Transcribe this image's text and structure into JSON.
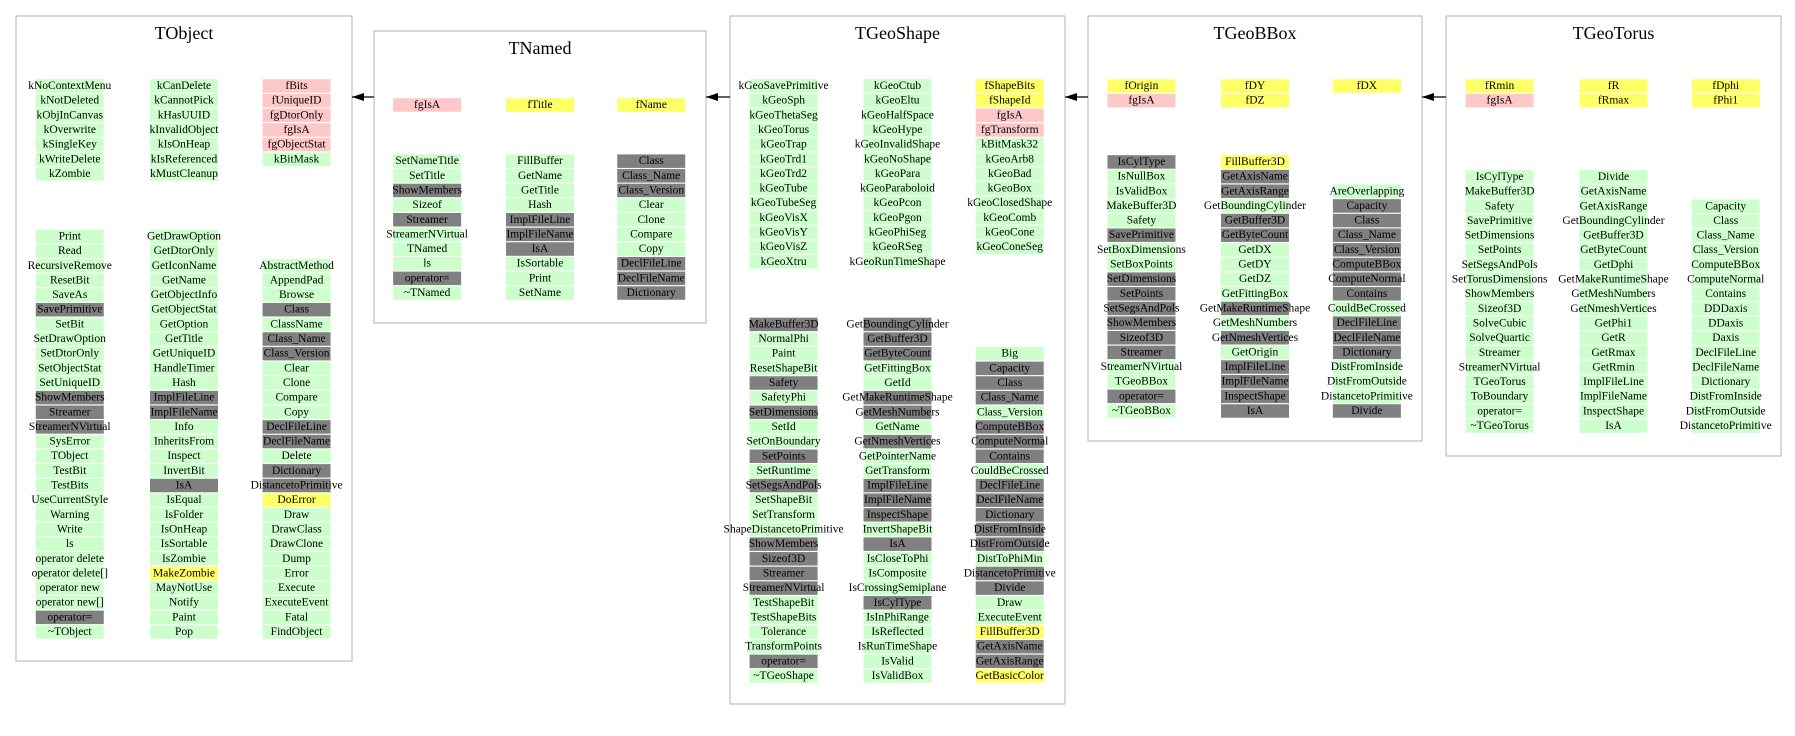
{
  "boxes": [
    {
      "title": "TObject",
      "members": [
        [
          "kNoContextMenu",
          "kNotDeleted",
          "kObjInCanvas",
          "kOverwrite",
          "kSingleKey",
          "kWriteDelete",
          "kZombie"
        ],
        [
          "kCanDelete",
          "kCannotPick",
          "kHasUUID",
          "kInvalidObject",
          "kIsOnHeap",
          "kIsReferenced",
          "kMustCleanup"
        ],
        [
          {
            "label": "fBits",
            "color": "#ffc8c8"
          },
          {
            "label": "fUniqueID",
            "color": "#ffc8c8"
          },
          {
            "label": "fgDtorOnly",
            "color": "#ffc8c8"
          },
          {
            "label": "fgIsA",
            "color": "#ffc8c8"
          },
          {
            "label": "fgObjectStat",
            "color": "#ffc8c8"
          },
          "kBitMask"
        ]
      ],
      "methods": [
        [
          "Print",
          "Read",
          "RecursiveRemove",
          "ResetBit",
          "SaveAs",
          {
            "label": "SavePrimitive",
            "color": "#808080"
          },
          "SetBit",
          "SetDrawOption",
          "SetDtorOnly",
          "SetObjectStat",
          "SetUniqueID",
          {
            "label": "ShowMembers",
            "color": "#808080"
          },
          {
            "label": "Streamer",
            "color": "#808080"
          },
          {
            "label": "StreamerNVirtual",
            "color": "#808080"
          },
          "SysError",
          "TObject",
          "TestBit",
          "TestBits",
          "UseCurrentStyle",
          "Warning",
          "Write",
          "ls",
          "operator delete",
          "operator delete[]",
          "operator new",
          "operator new[]",
          {
            "label": "operator=",
            "color": "#808080"
          },
          "~TObject"
        ],
        [
          "GetDrawOption",
          "GetDtorOnly",
          "GetIconName",
          "GetName",
          "GetObjectInfo",
          "GetObjectStat",
          "GetOption",
          "GetTitle",
          "GetUniqueID",
          "HandleTimer",
          "Hash",
          {
            "label": "ImplFileLine",
            "color": "#808080"
          },
          {
            "label": "ImplFileName",
            "color": "#808080"
          },
          "Info",
          "InheritsFrom",
          "Inspect",
          "InvertBit",
          {
            "label": "IsA",
            "color": "#808080"
          },
          "IsEqual",
          "IsFolder",
          "IsOnHeap",
          "IsSortable",
          "IsZombie",
          {
            "label": "MakeZombie",
            "color": "#ffff66"
          },
          "MayNotUse",
          "Notify",
          "Paint",
          "Pop"
        ],
        [
          "AbstractMethod",
          "AppendPad",
          "Browse",
          {
            "label": "Class",
            "color": "#808080"
          },
          "ClassName",
          {
            "label": "Class_Name",
            "color": "#808080"
          },
          {
            "label": "Class_Version",
            "color": "#808080"
          },
          "Clear",
          "Clone",
          "Compare",
          "Copy",
          {
            "label": "DeclFileLine",
            "color": "#808080"
          },
          {
            "label": "DeclFileName",
            "color": "#808080"
          },
          "Delete",
          {
            "label": "Dictionary",
            "color": "#808080"
          },
          {
            "label": "DistancetoPrimitive",
            "color": "#808080"
          },
          {
            "label": "DoError",
            "color": "#ffff66"
          },
          "Draw",
          "DrawClass",
          "DrawClone",
          "Dump",
          "Error",
          "Execute",
          "ExecuteEvent",
          "Fatal",
          "FindObject"
        ]
      ]
    },
    {
      "title": "TNamed",
      "members": [
        [
          {
            "label": "fgIsA",
            "color": "#ffc8c8"
          }
        ],
        [
          {
            "label": "fTitle",
            "color": "#ffff66"
          }
        ],
        [
          {
            "label": "fName",
            "color": "#ffff66"
          }
        ]
      ],
      "methods": [
        [
          "SetNameTitle",
          "SetTitle",
          {
            "label": "ShowMembers",
            "color": "#808080"
          },
          "Sizeof",
          {
            "label": "Streamer",
            "color": "#808080"
          },
          "StreamerNVirtual",
          "TNamed",
          "ls",
          {
            "label": "operator=",
            "color": "#808080"
          },
          "~TNamed"
        ],
        [
          "FillBuffer",
          "GetName",
          "GetTitle",
          "Hash",
          {
            "label": "ImplFileLine",
            "color": "#808080"
          },
          {
            "label": "ImplFileName",
            "color": "#808080"
          },
          {
            "label": "IsA",
            "color": "#808080"
          },
          "IsSortable",
          "Print",
          "SetName"
        ],
        [
          {
            "label": "Class",
            "color": "#808080"
          },
          {
            "label": "Class_Name",
            "color": "#808080"
          },
          {
            "label": "Class_Version",
            "color": "#808080"
          },
          "Clear",
          "Clone",
          "Compare",
          "Copy",
          {
            "label": "DeclFileLine",
            "color": "#808080"
          },
          {
            "label": "DeclFileName",
            "color": "#808080"
          },
          {
            "label": "Dictionary",
            "color": "#808080"
          }
        ]
      ]
    },
    {
      "title": "TGeoShape",
      "members": [
        [
          "kGeoSavePrimitive",
          "kGeoSph",
          "kGeoThetaSeg",
          "kGeoTorus",
          "kGeoTrap",
          "kGeoTrd1",
          "kGeoTrd2",
          "kGeoTube",
          "kGeoTubeSeg",
          "kGeoVisX",
          "kGeoVisY",
          "kGeoVisZ",
          "kGeoXtru"
        ],
        [
          "kGeoCtub",
          "kGeoEltu",
          "kGeoHalfSpace",
          "kGeoHype",
          "kGeoInvalidShape",
          "kGeoNoShape",
          "kGeoPara",
          "kGeoParaboloid",
          "kGeoPcon",
          "kGeoPgon",
          "kGeoPhiSeg",
          "kGeoRSeg",
          "kGeoRunTimeShape"
        ],
        [
          {
            "label": "fShapeBits",
            "color": "#ffff66"
          },
          {
            "label": "fShapeId",
            "color": "#ffff66"
          },
          {
            "label": "fgIsA",
            "color": "#ffc8c8"
          },
          {
            "label": "fgTransform",
            "color": "#ffc8c8"
          },
          "kBitMask32",
          "kGeoArb8",
          "kGeoBad",
          "kGeoBox",
          "kGeoClosedShape",
          "kGeoComb",
          "kGeoCone",
          "kGeoConeSeg"
        ]
      ],
      "methods": [
        [
          {
            "label": "MakeBuffer3D",
            "color": "#808080"
          },
          "NormalPhi",
          "Paint",
          "ResetShapeBit",
          {
            "label": "Safety",
            "color": "#808080"
          },
          "SafetyPhi",
          {
            "label": "SetDimensions",
            "color": "#808080"
          },
          "SetId",
          "SetOnBoundary",
          {
            "label": "SetPoints",
            "color": "#808080"
          },
          "SetRuntime",
          {
            "label": "SetSegsAndPols",
            "color": "#808080"
          },
          "SetShapeBit",
          "SetTransform",
          "ShapeDistancetoPrimitive",
          {
            "label": "ShowMembers",
            "color": "#808080"
          },
          {
            "label": "Sizeof3D",
            "color": "#808080"
          },
          {
            "label": "Streamer",
            "color": "#808080"
          },
          {
            "label": "StreamerNVirtual",
            "color": "#808080"
          },
          "TestShapeBit",
          "TestShapeBits",
          "Tolerance",
          "TransformPoints",
          {
            "label": "operator=",
            "color": "#808080"
          },
          "~TGeoShape"
        ],
        [
          {
            "label": "GetBoundingCylinder",
            "color": "#808080"
          },
          {
            "label": "GetBuffer3D",
            "color": "#808080"
          },
          {
            "label": "GetByteCount",
            "color": "#808080"
          },
          "GetFittingBox",
          "GetId",
          {
            "label": "GetMakeRuntimeShape",
            "color": "#808080"
          },
          {
            "label": "GetMeshNumbers",
            "color": "#808080"
          },
          "GetName",
          {
            "label": "GetNmeshVertices",
            "color": "#808080"
          },
          "GetPointerName",
          "GetTransform",
          {
            "label": "ImplFileLine",
            "color": "#808080"
          },
          {
            "label": "ImplFileName",
            "color": "#808080"
          },
          {
            "label": "InspectShape",
            "color": "#808080"
          },
          "InvertShapeBit",
          {
            "label": "IsA",
            "color": "#808080"
          },
          "IsCloseToPhi",
          "IsComposite",
          "IsCrossingSemiplane",
          {
            "label": "IsCylType",
            "color": "#808080"
          },
          "IsInPhiRange",
          "IsReflected",
          "IsRunTimeShape",
          "IsValid",
          "IsValidBox"
        ],
        [
          "Big",
          {
            "label": "Capacity",
            "color": "#808080"
          },
          {
            "label": "Class",
            "color": "#808080"
          },
          {
            "label": "Class_Name",
            "color": "#808080"
          },
          "Class_Version",
          {
            "label": "ComputeBBox",
            "color": "#808080"
          },
          {
            "label": "ComputeNormal",
            "color": "#808080"
          },
          {
            "label": "Contains",
            "color": "#808080"
          },
          "CouldBeCrossed",
          {
            "label": "DeclFileLine",
            "color": "#808080"
          },
          {
            "label": "DeclFileName",
            "color": "#808080"
          },
          {
            "label": "Dictionary",
            "color": "#808080"
          },
          {
            "label": "DistFromInside",
            "color": "#808080"
          },
          {
            "label": "DistFromOutside",
            "color": "#808080"
          },
          "DistToPhiMin",
          {
            "label": "DistancetoPrimitive",
            "color": "#808080"
          },
          {
            "label": "Divide",
            "color": "#808080"
          },
          "Draw",
          "ExecuteEvent",
          {
            "label": "FillBuffer3D",
            "color": "#ffff66"
          },
          {
            "label": "GetAxisName",
            "color": "#808080"
          },
          {
            "label": "GetAxisRange",
            "color": "#808080"
          },
          {
            "label": "GetBasicColor",
            "color": "#ffff66"
          }
        ]
      ]
    },
    {
      "title": "TGeoBBox",
      "members": [
        [
          {
            "label": "fOrigin",
            "color": "#ffff66"
          },
          {
            "label": "fgIsA",
            "color": "#ffc8c8"
          }
        ],
        [
          {
            "label": "fDY",
            "color": "#ffff66"
          },
          {
            "label": "fDZ",
            "color": "#ffff66"
          }
        ],
        [
          {
            "label": "fDX",
            "color": "#ffff66"
          }
        ]
      ],
      "methods": [
        [
          {
            "label": "IsCylType",
            "color": "#808080"
          },
          "IsNullBox",
          "IsValidBox",
          "MakeBuffer3D",
          "Safety",
          {
            "label": "SavePrimitive",
            "color": "#808080"
          },
          "SetBoxDimensions",
          "SetBoxPoints",
          {
            "label": "SetDimensions",
            "color": "#808080"
          },
          {
            "label": "SetPoints",
            "color": "#808080"
          },
          {
            "label": "SetSegsAndPols",
            "color": "#808080"
          },
          {
            "label": "ShowMembers",
            "color": "#808080"
          },
          {
            "label": "Sizeof3D",
            "color": "#808080"
          },
          {
            "label": "Streamer",
            "color": "#808080"
          },
          "StreamerNVirtual",
          "TGeoBBox",
          {
            "label": "operator=",
            "color": "#808080"
          },
          "~TGeoBBox"
        ],
        [
          {
            "label": "FillBuffer3D",
            "color": "#ffff66"
          },
          {
            "label": "GetAxisName",
            "color": "#808080"
          },
          {
            "label": "GetAxisRange",
            "color": "#808080"
          },
          "GetBoundingCylinder",
          {
            "label": "GetBuffer3D",
            "color": "#808080"
          },
          {
            "label": "GetByteCount",
            "color": "#808080"
          },
          "GetDX",
          "GetDY",
          "GetDZ",
          "GetFittingBox",
          {
            "label": "GetMakeRuntimeShape",
            "color": "#808080"
          },
          "GetMeshNumbers",
          {
            "label": "GetNmeshVertices",
            "color": "#808080"
          },
          "GetOrigin",
          {
            "label": "ImplFileLine",
            "color": "#808080"
          },
          {
            "label": "ImplFileName",
            "color": "#808080"
          },
          {
            "label": "InspectShape",
            "color": "#808080"
          },
          {
            "label": "IsA",
            "color": "#808080"
          }
        ],
        [
          "AreOverlapping",
          {
            "label": "Capacity",
            "color": "#808080"
          },
          {
            "label": "Class",
            "color": "#808080"
          },
          {
            "label": "Class_Name",
            "color": "#808080"
          },
          {
            "label": "Class_Version",
            "color": "#808080"
          },
          {
            "label": "ComputeBBox",
            "color": "#808080"
          },
          {
            "label": "ComputeNormal",
            "color": "#808080"
          },
          {
            "label": "Contains",
            "color": "#808080"
          },
          "CouldBeCrossed",
          {
            "label": "DeclFileLine",
            "color": "#808080"
          },
          {
            "label": "DeclFileName",
            "color": "#808080"
          },
          {
            "label": "Dictionary",
            "color": "#808080"
          },
          "DistFromInside",
          "DistFromOutside",
          "DistancetoPrimitive",
          {
            "label": "Divide",
            "color": "#808080"
          }
        ]
      ]
    },
    {
      "title": "TGeoTorus",
      "members": [
        [
          {
            "label": "fRmin",
            "color": "#ffff66"
          },
          {
            "label": "fgIsA",
            "color": "#ffc8c8"
          }
        ],
        [
          {
            "label": "fR",
            "color": "#ffff66"
          },
          {
            "label": "fRmax",
            "color": "#ffff66"
          }
        ],
        [
          {
            "label": "fDphi",
            "color": "#ffff66"
          },
          {
            "label": "fPhi1",
            "color": "#ffff66"
          }
        ]
      ],
      "methods": [
        [
          "IsCylType",
          "MakeBuffer3D",
          "Safety",
          "SavePrimitive",
          "SetDimensions",
          "SetPoints",
          "SetSegsAndPols",
          "SetTorusDimensions",
          "ShowMembers",
          "Sizeof3D",
          "SolveCubic",
          "SolveQuartic",
          "Streamer",
          "StreamerNVirtual",
          "TGeoTorus",
          "ToBoundary",
          "operator=",
          "~TGeoTorus"
        ],
        [
          "Divide",
          "GetAxisName",
          "GetAxisRange",
          "GetBoundingCylinder",
          "GetBuffer3D",
          "GetByteCount",
          "GetDphi",
          "GetMakeRuntimeShape",
          "GetMeshNumbers",
          "GetNmeshVertices",
          "GetPhi1",
          "GetR",
          "GetRmax",
          "GetRmin",
          "ImplFileLine",
          "ImplFileName",
          "InspectShape",
          "IsA"
        ],
        [
          "Capacity",
          "Class",
          "Class_Name",
          "Class_Version",
          "ComputeBBox",
          "ComputeNormal",
          "Contains",
          "DDDaxis",
          "DDaxis",
          "Daxis",
          "DeclFileLine",
          "DeclFileName",
          "Dictionary",
          "DistFromInside",
          "DistFromOutside",
          "DistancetoPrimitive"
        ]
      ]
    }
  ]
}
